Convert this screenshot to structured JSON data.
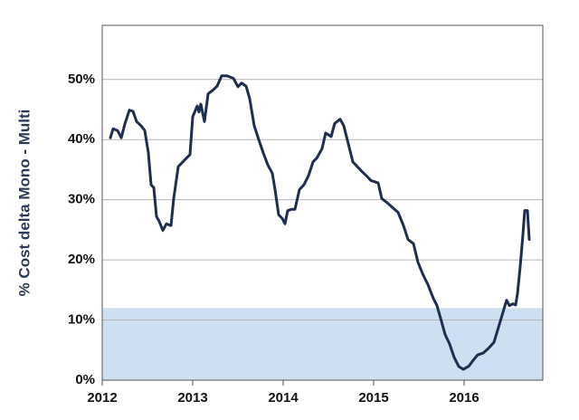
{
  "chart_data": {
    "type": "line",
    "y_label": "% Cost delta Mono - Multi",
    "x": [
      2012.09,
      2012.12,
      2012.17,
      2012.21,
      2012.25,
      2012.3,
      2012.34,
      2012.38,
      2012.43,
      2012.47,
      2012.51,
      2012.54,
      2012.57,
      2012.6,
      2012.63,
      2012.67,
      2012.71,
      2012.76,
      2012.79,
      2012.84,
      2012.91,
      2012.97,
      2013.0,
      2013.05,
      2013.07,
      2013.09,
      2013.13,
      2013.17,
      2013.23,
      2013.27,
      2013.32,
      2013.38,
      2013.45,
      2013.5,
      2013.54,
      2013.59,
      2013.63,
      2013.68,
      2013.73,
      2013.78,
      2013.83,
      2013.88,
      2013.91,
      2013.95,
      2013.99,
      2014.02,
      2014.05,
      2014.09,
      2014.13,
      2014.18,
      2014.23,
      2014.28,
      2014.33,
      2014.37,
      2014.43,
      2014.47,
      2014.53,
      2014.57,
      2014.63,
      2014.67,
      2014.72,
      2014.77,
      2014.82,
      2014.87,
      2014.92,
      2014.97,
      2015.05,
      2015.09,
      2015.15,
      2015.21,
      2015.27,
      2015.33,
      2015.38,
      2015.44,
      2015.49,
      2015.55,
      2015.6,
      2015.66,
      2015.7,
      2015.74,
      2015.79,
      2015.84,
      2015.89,
      2015.94,
      2015.99,
      2016.05,
      2016.1,
      2016.15,
      2016.21,
      2016.27,
      2016.33,
      2016.38,
      2016.43,
      2016.47,
      2016.5,
      2016.54,
      2016.57,
      2016.59,
      2016.62,
      2016.65,
      2016.67,
      2016.7,
      2016.72
    ],
    "series": [
      {
        "color": "#1f2d4e",
        "values": [
          40.3,
          41.8,
          41.5,
          40.3,
          42.6,
          44.9,
          44.7,
          43,
          42.3,
          41.5,
          37.8,
          32.5,
          32,
          27.2,
          26.4,
          24.9,
          26,
          25.7,
          30.2,
          35.5,
          36.6,
          37.5,
          43.8,
          45.6,
          44.6,
          45.9,
          43,
          47.6,
          48.3,
          48.9,
          50.6,
          50.6,
          50.2,
          48.8,
          49.4,
          48.9,
          46.8,
          42.3,
          40,
          37.8,
          35.8,
          34.4,
          31.7,
          27.5,
          26.9,
          26,
          28.2,
          28.4,
          28.4,
          31.7,
          32.5,
          34,
          36.3,
          36.9,
          38.5,
          41.1,
          40.5,
          42.7,
          43.4,
          42.3,
          39.3,
          36.3,
          35.5,
          34.7,
          34,
          33.2,
          32.8,
          30.2,
          29.5,
          28.7,
          27.9,
          25.7,
          23.4,
          22.7,
          19.6,
          17.4,
          15.9,
          13.6,
          12.4,
          10.3,
          7.6,
          6,
          3.8,
          2.3,
          1.8,
          2.3,
          3.3,
          4.2,
          4.5,
          5.3,
          6.3,
          8.8,
          11.3,
          13.3,
          12.4,
          12.7,
          12.5,
          14.4,
          18.9,
          24.2,
          28.2,
          28.2,
          23.4
        ]
      }
    ],
    "xlim": [
      2012,
      2016.87
    ],
    "xticks": [
      2012,
      2013,
      2014,
      2015,
      2016
    ],
    "ylim": [
      0,
      59
    ],
    "yticks": [
      {
        "value": 0,
        "label": "0%"
      },
      {
        "value": 10,
        "label": "10%"
      },
      {
        "value": 20,
        "label": "20%"
      },
      {
        "value": 30,
        "label": "30%"
      },
      {
        "value": 40,
        "label": "40%"
      },
      {
        "value": 50,
        "label": "50%"
      }
    ],
    "grid": true,
    "shaded_range": [
      0,
      12
    ],
    "shaded_color": "#cfdff2"
  }
}
